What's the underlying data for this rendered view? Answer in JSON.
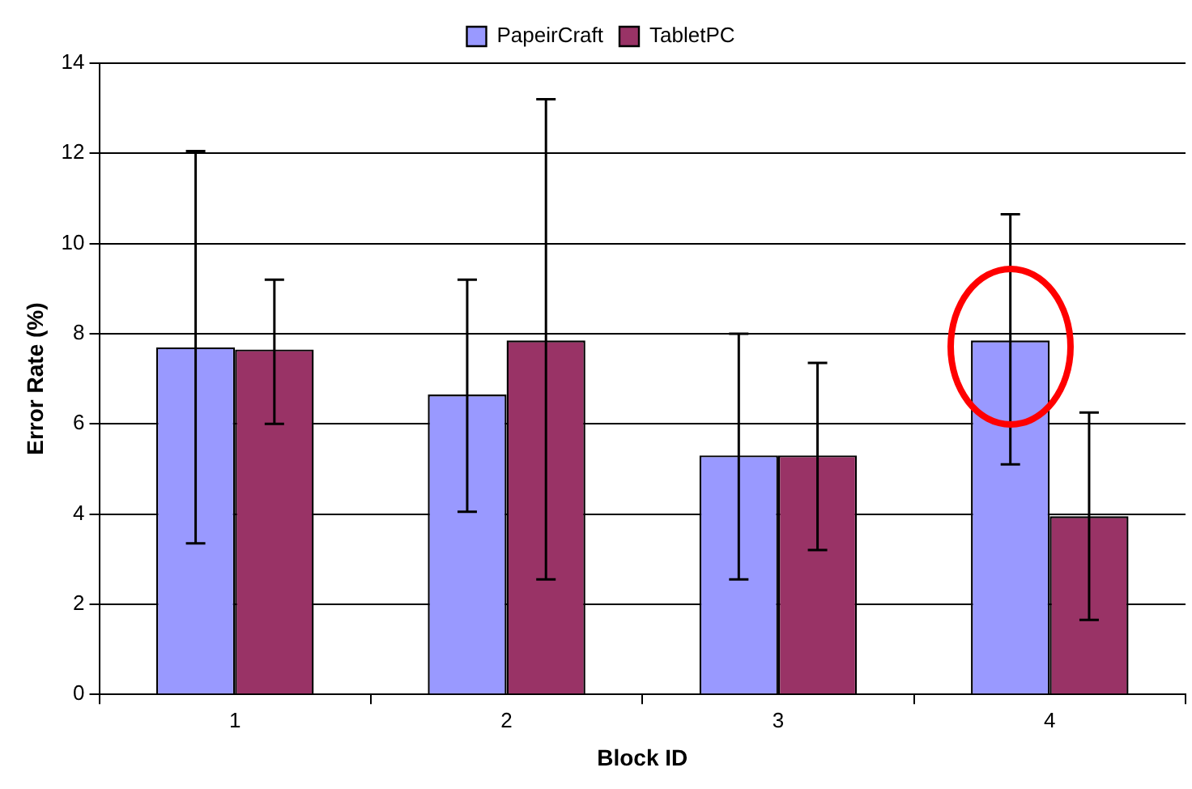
{
  "chart_data": {
    "type": "bar",
    "xlabel": "Block ID",
    "ylabel": "Error Rate (%)",
    "categories": [
      "1",
      "2",
      "3",
      "4"
    ],
    "series": [
      {
        "name": "PapeirCraft",
        "color": "#9999ff",
        "values": [
          7.7,
          6.65,
          5.3,
          7.85
        ],
        "errors": [
          [
            3.35,
            12.05
          ],
          [
            4.05,
            9.2
          ],
          [
            2.55,
            8.0
          ],
          [
            5.1,
            10.65
          ]
        ]
      },
      {
        "name": "TabletPC",
        "color": "#993366",
        "values": [
          7.65,
          7.85,
          5.3,
          3.95
        ],
        "errors": [
          [
            6.0,
            9.2
          ],
          [
            2.55,
            13.2
          ],
          [
            3.2,
            7.35
          ],
          [
            1.65,
            6.25
          ]
        ]
      }
    ],
    "ylim": [
      0,
      14
    ],
    "yticks": [
      0,
      2,
      4,
      6,
      8,
      10,
      12,
      14
    ],
    "grid": "y",
    "legend": "top"
  }
}
